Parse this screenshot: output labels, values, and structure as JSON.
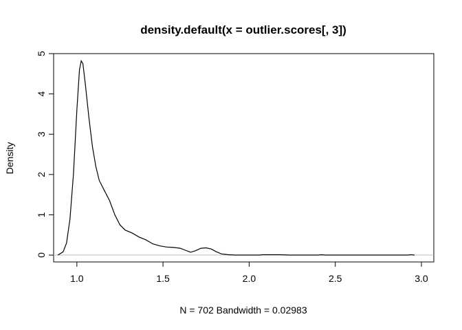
{
  "chart_data": {
    "type": "line",
    "title": "density.default(x = outlier.scores[, 3])",
    "xlabel": "N = 702   Bandwidth = 0.02983",
    "ylabel": "Density",
    "xlim": [
      0.8,
      3.1
    ],
    "ylim": [
      0,
      5
    ],
    "x_ticks": [
      1.0,
      1.5,
      2.0,
      2.5,
      3.0
    ],
    "x_tick_labels": [
      "1.0",
      "1.5",
      "2.0",
      "2.5",
      "3.0"
    ],
    "y_ticks": [
      0,
      1,
      2,
      3,
      4,
      5
    ],
    "y_tick_labels": [
      "0",
      "1",
      "2",
      "3",
      "4",
      "5"
    ],
    "grid": false,
    "baseline": 0,
    "colors": {
      "line": "#000000",
      "baseline": "#bebebe"
    },
    "series": [
      {
        "values": [
          [
            0.89,
            0.0
          ],
          [
            0.92,
            0.08
          ],
          [
            0.94,
            0.3
          ],
          [
            0.96,
            0.9
          ],
          [
            0.98,
            2.0
          ],
          [
            1.0,
            3.6
          ],
          [
            1.015,
            4.6
          ],
          [
            1.025,
            4.82
          ],
          [
            1.035,
            4.75
          ],
          [
            1.05,
            4.2
          ],
          [
            1.07,
            3.4
          ],
          [
            1.09,
            2.7
          ],
          [
            1.11,
            2.2
          ],
          [
            1.13,
            1.85
          ],
          [
            1.16,
            1.6
          ],
          [
            1.19,
            1.35
          ],
          [
            1.22,
            1.0
          ],
          [
            1.25,
            0.75
          ],
          [
            1.28,
            0.62
          ],
          [
            1.32,
            0.55
          ],
          [
            1.36,
            0.45
          ],
          [
            1.4,
            0.38
          ],
          [
            1.44,
            0.28
          ],
          [
            1.48,
            0.23
          ],
          [
            1.52,
            0.2
          ],
          [
            1.56,
            0.19
          ],
          [
            1.6,
            0.17
          ],
          [
            1.63,
            0.12
          ],
          [
            1.66,
            0.07
          ],
          [
            1.69,
            0.11
          ],
          [
            1.72,
            0.17
          ],
          [
            1.75,
            0.18
          ],
          [
            1.78,
            0.15
          ],
          [
            1.81,
            0.08
          ],
          [
            1.84,
            0.03
          ],
          [
            1.88,
            0.01
          ],
          [
            1.92,
            0.0
          ],
          [
            2.0,
            0.0
          ],
          [
            2.06,
            0.0
          ],
          [
            2.08,
            0.01
          ],
          [
            2.12,
            0.01
          ],
          [
            2.18,
            0.01
          ],
          [
            2.24,
            0.0
          ],
          [
            2.4,
            0.0
          ],
          [
            2.42,
            0.01
          ],
          [
            2.44,
            0.0
          ],
          [
            2.92,
            0.0
          ],
          [
            2.94,
            0.01
          ],
          [
            2.96,
            0.0
          ]
        ]
      }
    ]
  }
}
